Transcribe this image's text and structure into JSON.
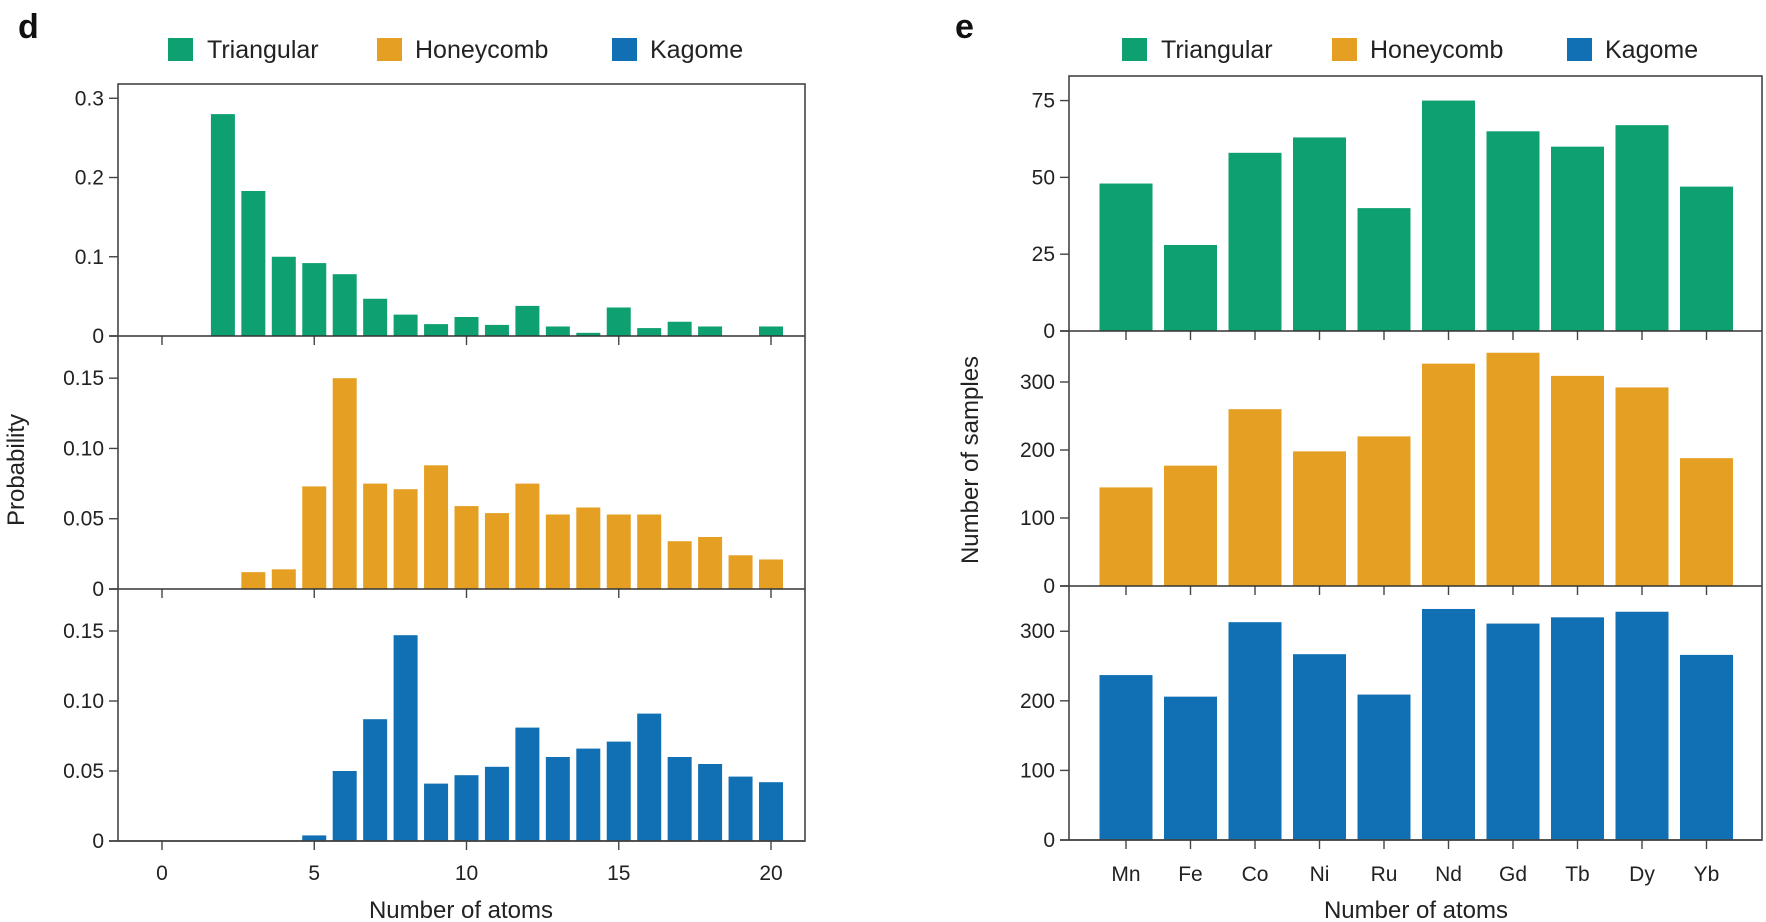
{
  "colors": {
    "Triangular": "#0fa071",
    "Honeycomb": "#e5a024",
    "Kagome": "#1170b3"
  },
  "chart_data": [
    {
      "panel": "d",
      "type": "bar",
      "legend": [
        "Triangular",
        "Honeycomb",
        "Kagome"
      ],
      "legend_position": "top",
      "xlabel": "Number of atoms",
      "ylabel": "Probability",
      "x_ticks": [
        0,
        5,
        10,
        15,
        20
      ],
      "x_tick_labels": [
        "0",
        "5",
        "10",
        "15",
        "20"
      ],
      "xlim": [
        -1.5,
        21
      ],
      "subplots": [
        {
          "name": "Triangular",
          "ylim": [
            0,
            0.318
          ],
          "y_ticks": [
            0,
            0.1,
            0.2,
            0.3
          ],
          "y_tick_labels": [
            "0",
            "0.1",
            "0.2",
            "0.3"
          ],
          "x": [
            2,
            3,
            4,
            5,
            6,
            7,
            8,
            9,
            10,
            11,
            12,
            13,
            14,
            15,
            16,
            17,
            18,
            19,
            20
          ],
          "values": [
            0.28,
            0.183,
            0.1,
            0.092,
            0.078,
            0.047,
            0.027,
            0.015,
            0.024,
            0.014,
            0.038,
            0.012,
            0.004,
            0.036,
            0.01,
            0.018,
            0.012,
            0,
            0.012
          ]
        },
        {
          "name": "Honeycomb",
          "ylim": [
            0,
            0.18
          ],
          "y_ticks": [
            0,
            0.05,
            0.1,
            0.15
          ],
          "y_tick_labels": [
            "0",
            "0.05",
            "0.10",
            "0.15"
          ],
          "x": [
            3,
            4,
            5,
            6,
            7,
            8,
            9,
            10,
            11,
            12,
            13,
            14,
            15,
            16,
            17,
            18,
            19,
            20
          ],
          "values": [
            0.012,
            0.014,
            0.073,
            0.15,
            0.075,
            0.071,
            0.088,
            0.059,
            0.054,
            0.075,
            0.053,
            0.058,
            0.053,
            0.053,
            0.034,
            0.037,
            0.024,
            0.021
          ]
        },
        {
          "name": "Kagome",
          "ylim": [
            0,
            0.18
          ],
          "y_ticks": [
            0,
            0.05,
            0.1,
            0.15
          ],
          "y_tick_labels": [
            "0",
            "0.05",
            "0.10",
            "0.15"
          ],
          "x": [
            5,
            6,
            7,
            8,
            9,
            10,
            11,
            12,
            13,
            14,
            15,
            16,
            17,
            18,
            19,
            20
          ],
          "values": [
            0.004,
            0.05,
            0.087,
            0.147,
            0.041,
            0.047,
            0.053,
            0.081,
            0.06,
            0.066,
            0.071,
            0.091,
            0.06,
            0.055,
            0.046,
            0.042
          ]
        }
      ]
    },
    {
      "panel": "e",
      "type": "bar",
      "legend": [
        "Triangular",
        "Honeycomb",
        "Kagome"
      ],
      "legend_position": "top",
      "xlabel": "Number of atoms",
      "ylabel": "Number of samples",
      "categories": [
        "Mn",
        "Fe",
        "Co",
        "Ni",
        "Ru",
        "Nd",
        "Gd",
        "Tb",
        "Dy",
        "Yb"
      ],
      "subplots": [
        {
          "name": "Triangular",
          "ylim": [
            0,
            83
          ],
          "y_ticks": [
            0,
            25,
            50,
            75
          ],
          "y_tick_labels": [
            "0",
            "25",
            "50",
            "75"
          ],
          "values": [
            48,
            28,
            58,
            63,
            40,
            75,
            65,
            60,
            67,
            47
          ]
        },
        {
          "name": "Honeycomb",
          "ylim": [
            0,
            375
          ],
          "y_ticks": [
            0,
            100,
            200,
            300
          ],
          "y_tick_labels": [
            "0",
            "100",
            "200",
            "300"
          ],
          "values": [
            145,
            177,
            260,
            198,
            220,
            327,
            343,
            309,
            292,
            188
          ]
        },
        {
          "name": "Kagome",
          "ylim": [
            0,
            365
          ],
          "y_ticks": [
            0,
            100,
            200,
            300
          ],
          "y_tick_labels": [
            "0",
            "100",
            "200",
            "300"
          ],
          "values": [
            237,
            206,
            313,
            267,
            209,
            332,
            311,
            320,
            328,
            266
          ]
        }
      ]
    }
  ],
  "panels": {
    "d": {
      "letter": "d"
    },
    "e": {
      "letter": "e"
    }
  },
  "legend_labels": [
    "Triangular",
    "Honeycomb",
    "Kagome"
  ]
}
